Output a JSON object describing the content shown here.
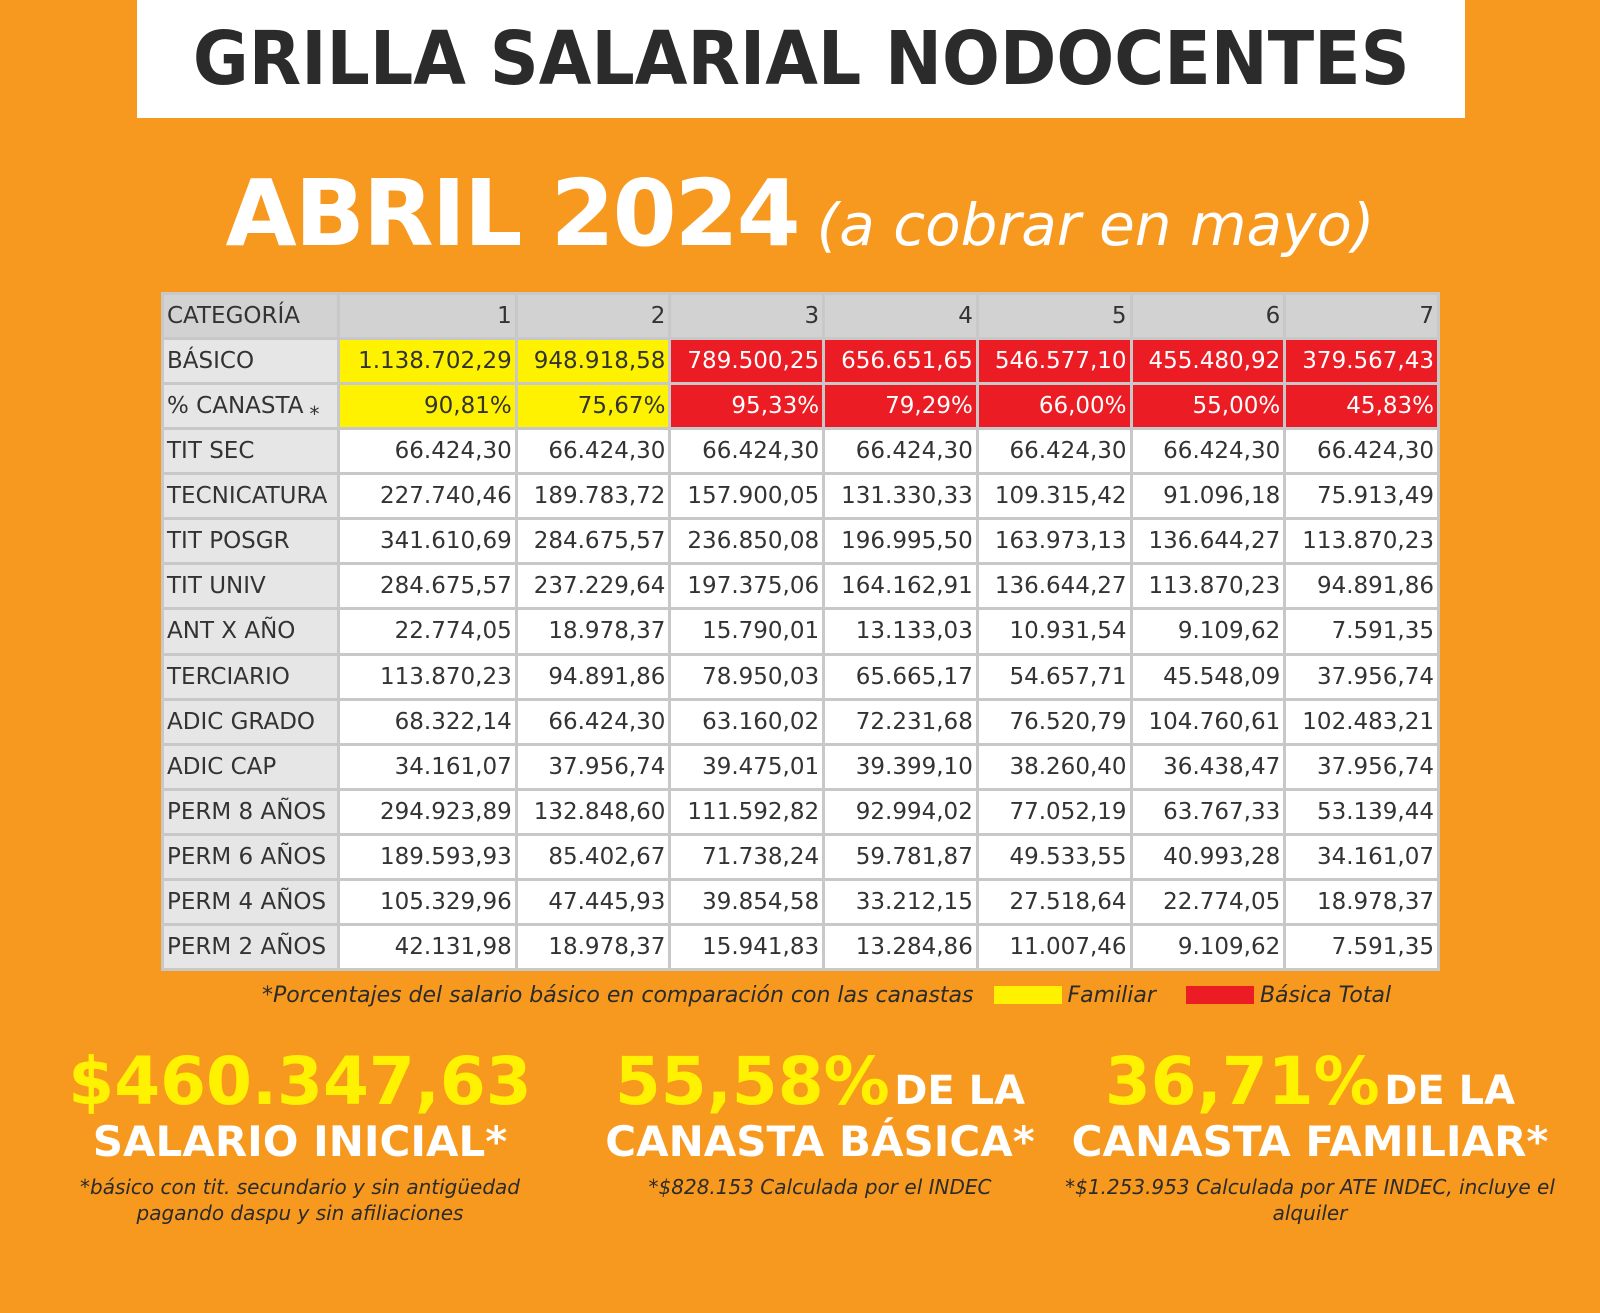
{
  "header": {
    "title": "GRILLA SALARIAL NODOCENTES",
    "period": "ABRIL 2024",
    "period_note": "(a cobrar en mayo)"
  },
  "table": {
    "header": [
      "CATEGORÍA",
      "1",
      "2",
      "3",
      "4",
      "5",
      "6",
      "7"
    ],
    "rows": [
      {
        "label": "BÁSICO",
        "values": [
          "1.138.702,29",
          "948.918,58",
          "789.500,25",
          "656.651,65",
          "546.577,10",
          "455.480,92",
          "379.567,43"
        ],
        "colors": [
          "yellow",
          "yellow",
          "red",
          "red",
          "red",
          "red",
          "red"
        ]
      },
      {
        "label": "% CANASTA",
        "mark": "*",
        "values": [
          "90,81%",
          "75,67%",
          "95,33%",
          "79,29%",
          "66,00%",
          "55,00%",
          "45,83%"
        ],
        "colors": [
          "yellow",
          "yellow",
          "red",
          "red",
          "red",
          "red",
          "red"
        ]
      },
      {
        "label": "TIT SEC",
        "values": [
          "66.424,30",
          "66.424,30",
          "66.424,30",
          "66.424,30",
          "66.424,30",
          "66.424,30",
          "66.424,30"
        ]
      },
      {
        "label": "TECNICATURA",
        "values": [
          "227.740,46",
          "189.783,72",
          "157.900,05",
          "131.330,33",
          "109.315,42",
          "91.096,18",
          "75.913,49"
        ]
      },
      {
        "label": "TIT POSGR",
        "values": [
          "341.610,69",
          "284.675,57",
          "236.850,08",
          "196.995,50",
          "163.973,13",
          "136.644,27",
          "113.870,23"
        ]
      },
      {
        "label": "TIT UNIV",
        "values": [
          "284.675,57",
          "237.229,64",
          "197.375,06",
          "164.162,91",
          "136.644,27",
          "113.870,23",
          "94.891,86"
        ]
      },
      {
        "label": "ANT X AÑO",
        "values": [
          "22.774,05",
          "18.978,37",
          "15.790,01",
          "13.133,03",
          "10.931,54",
          "9.109,62",
          "7.591,35"
        ]
      },
      {
        "label": "TERCIARIO",
        "values": [
          "113.870,23",
          "94.891,86",
          "78.950,03",
          "65.665,17",
          "54.657,71",
          "45.548,09",
          "37.956,74"
        ]
      },
      {
        "label": "ADIC GRADO",
        "values": [
          "68.322,14",
          "66.424,30",
          "63.160,02",
          "72.231,68",
          "76.520,79",
          "104.760,61",
          "102.483,21"
        ]
      },
      {
        "label": "ADIC CAP",
        "values": [
          "34.161,07",
          "37.956,74",
          "39.475,01",
          "39.399,10",
          "38.260,40",
          "36.438,47",
          "37.956,74"
        ]
      },
      {
        "label": "PERM 8 AÑOS",
        "values": [
          "294.923,89",
          "132.848,60",
          "111.592,82",
          "92.994,02",
          "77.052,19",
          "63.767,33",
          "53.139,44"
        ]
      },
      {
        "label": "PERM 6 AÑOS",
        "values": [
          "189.593,93",
          "85.402,67",
          "71.738,24",
          "59.781,87",
          "49.533,55",
          "40.993,28",
          "34.161,07"
        ]
      },
      {
        "label": "PERM 4 AÑOS",
        "values": [
          "105.329,96",
          "47.445,93",
          "39.854,58",
          "33.212,15",
          "27.518,64",
          "22.774,05",
          "18.978,37"
        ]
      },
      {
        "label": "PERM 2 AÑOS",
        "values": [
          "42.131,98",
          "18.978,37",
          "15.941,83",
          "13.284,86",
          "11.007,46",
          "9.109,62",
          "7.591,35"
        ]
      }
    ]
  },
  "legend": {
    "note": "*Porcentajes del salario básico en comparación con las canastas",
    "familiar": "Familiar",
    "basica": "Básica Total"
  },
  "stats": [
    {
      "value": "$460.347,63",
      "label_inline": "",
      "label": "SALARIO INICIAL*",
      "note_lines": [
        "*básico con tit. secundario y sin antigüedad",
        "pagando daspu y sin afiliaciones"
      ]
    },
    {
      "value": "55,58%",
      "label_inline": "DE LA",
      "label": "CANASTA BÁSICA*",
      "note_lines": [
        "*$828.153 Calculada por el INDEC"
      ]
    },
    {
      "value": "36,71%",
      "label_inline": "DE LA",
      "label": "CANASTA FAMILIAR*",
      "note_lines": [
        "*$1.253.953 Calculada por ATE INDEC, incluye el alquiler"
      ]
    }
  ],
  "colors": {
    "background": "#f7991f",
    "yellow": "#fff200",
    "red": "#ec1c24",
    "title_text": "#2b2b2b"
  }
}
